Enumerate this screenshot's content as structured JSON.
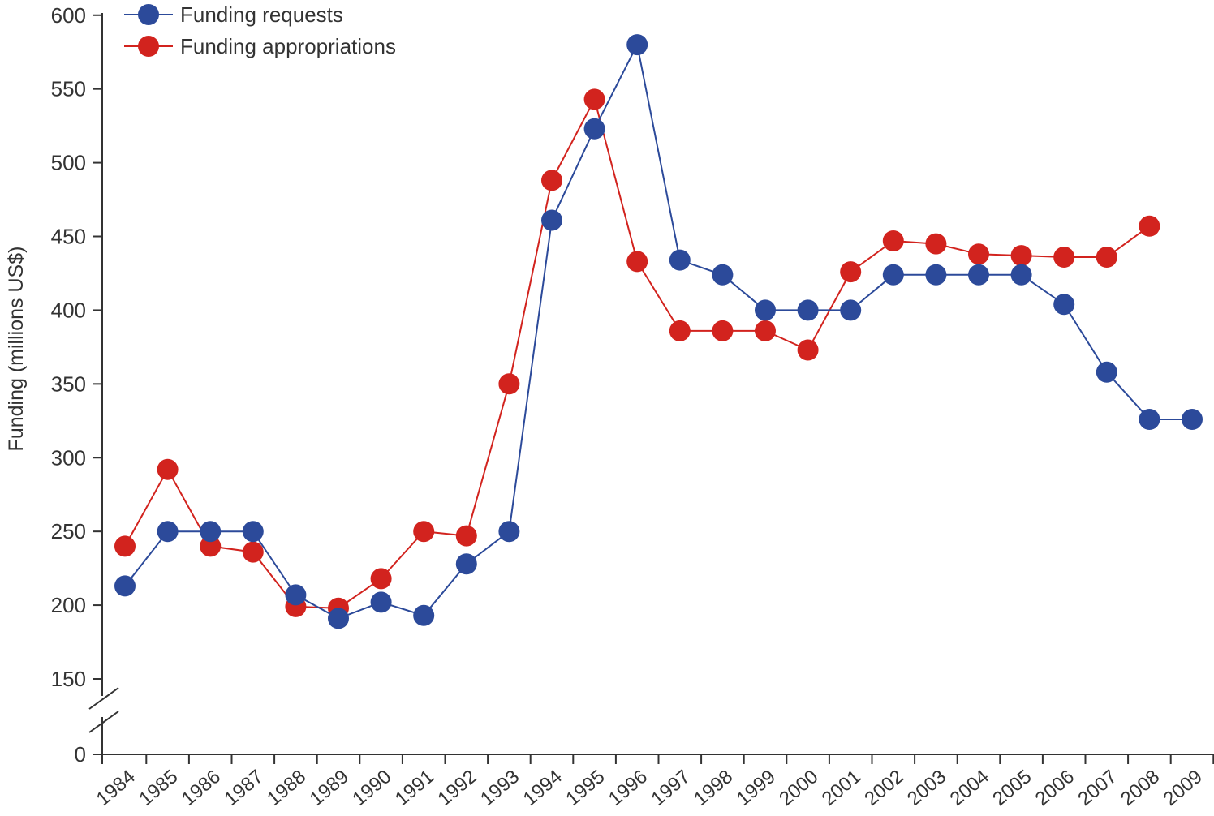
{
  "chart_data": {
    "type": "line",
    "title": "",
    "xlabel": "",
    "ylabel": "Funding (millions US$)",
    "categories": [
      "1984",
      "1985",
      "1986",
      "1987",
      "1988",
      "1989",
      "1990",
      "1991",
      "1992",
      "1993",
      "1994",
      "1995",
      "1996",
      "1997",
      "1998",
      "1999",
      "2000",
      "2001",
      "2002",
      "2003",
      "2004",
      "2005",
      "2006",
      "2007",
      "2008",
      "2009"
    ],
    "y_ticks": [
      {
        "value": 0,
        "label": "0"
      },
      {
        "value": 150,
        "label": "150"
      },
      {
        "value": 200,
        "label": "200"
      },
      {
        "value": 250,
        "label": "250"
      },
      {
        "value": 300,
        "label": "300"
      },
      {
        "value": 350,
        "label": "350"
      },
      {
        "value": 400,
        "label": "400"
      },
      {
        "value": 450,
        "label": "450"
      },
      {
        "value": 500,
        "label": "500"
      },
      {
        "value": 550,
        "label": "550"
      },
      {
        "value": 600,
        "label": "600"
      }
    ],
    "ylim": [
      0,
      600
    ],
    "axis_break": "between 0 and 150",
    "grid": false,
    "legend_position": "top-left",
    "series": [
      {
        "name": "Funding requests",
        "color": "#2c4a9a",
        "values": [
          213,
          250,
          250,
          250,
          207,
          191,
          202,
          193,
          228,
          250,
          461,
          523,
          580,
          434,
          424,
          400,
          400,
          400,
          424,
          424,
          424,
          424,
          404,
          358,
          326,
          326
        ]
      },
      {
        "name": "Funding appropriations",
        "color": "#d2231e",
        "values": [
          240,
          292,
          240,
          236,
          199,
          198,
          218,
          250,
          247,
          350,
          488,
          543,
          433,
          386,
          386,
          386,
          373,
          426,
          447,
          445,
          438,
          437,
          436,
          436,
          457,
          null
        ]
      }
    ]
  }
}
